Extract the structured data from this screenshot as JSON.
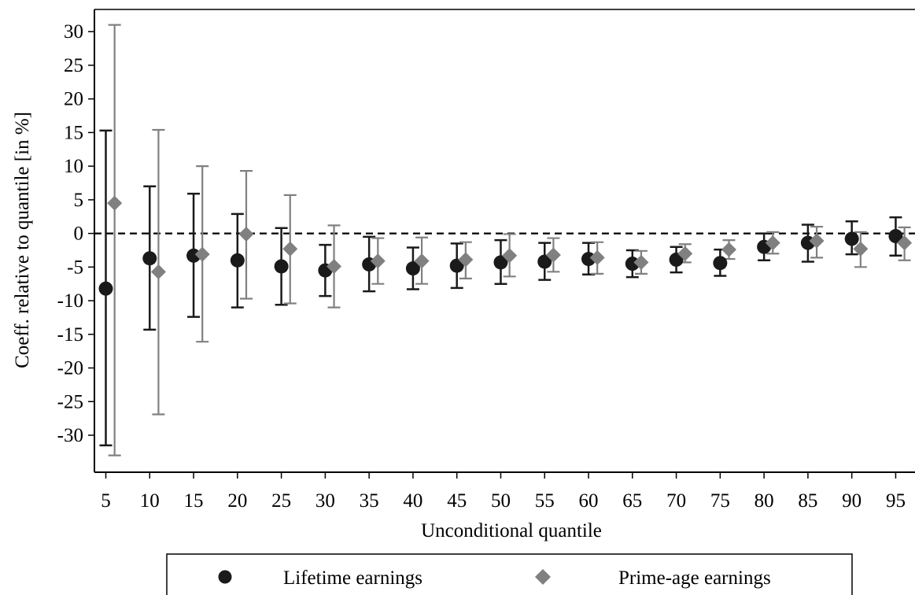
{
  "chart_data": {
    "type": "scatter",
    "xlabel": "Unconditional quantile",
    "ylabel": "Coeff. relative to quantile [in %]",
    "x": [
      5,
      10,
      15,
      20,
      25,
      30,
      35,
      40,
      45,
      50,
      55,
      60,
      65,
      70,
      75,
      80,
      85,
      90,
      95
    ],
    "x_ticks": [
      "5",
      "10",
      "15",
      "20",
      "25",
      "30",
      "35",
      "40",
      "45",
      "50",
      "55",
      "60",
      "65",
      "70",
      "75",
      "80",
      "85",
      "90",
      "95"
    ],
    "y_ticks": [
      "30",
      "25",
      "20",
      "15",
      "10",
      "5",
      "0",
      "-5",
      "-10",
      "-15",
      "-20",
      "-25",
      "-30"
    ],
    "y_tick_values": [
      30,
      25,
      20,
      15,
      10,
      5,
      0,
      -5,
      -10,
      -15,
      -20,
      -25,
      -30
    ],
    "xlim": [
      3.7,
      97.2
    ],
    "ylim": [
      -35.5,
      33.3
    ],
    "reference_line": {
      "y": 0,
      "style": "dashed"
    },
    "series": [
      {
        "name": "Lifetime earnings",
        "marker": "circle",
        "color": "#1a1a1a",
        "x_offset": 0,
        "values": [
          -8.2,
          -3.7,
          -3.3,
          -4.0,
          -4.9,
          -5.5,
          -4.6,
          -5.2,
          -4.8,
          -4.3,
          -4.2,
          -3.8,
          -4.5,
          -3.9,
          -4.4,
          -2.0,
          -1.4,
          -0.8,
          -0.4
        ],
        "ci_low": [
          -31.5,
          -14.3,
          -12.4,
          -11.0,
          -10.6,
          -9.3,
          -8.6,
          -8.3,
          -8.1,
          -7.5,
          -6.9,
          -6.1,
          -6.5,
          -5.8,
          -6.3,
          -4.0,
          -4.2,
          -3.1,
          -3.3
        ],
        "ci_high": [
          15.3,
          7.0,
          5.9,
          2.9,
          0.8,
          -1.7,
          -0.5,
          -2.1,
          -1.5,
          -1.0,
          -1.4,
          -1.4,
          -2.5,
          -2.0,
          -2.4,
          0.0,
          1.3,
          1.8,
          2.4
        ]
      },
      {
        "name": "Prime-age earnings",
        "marker": "diamond",
        "color": "#808080",
        "x_offset": 1,
        "values": [
          4.5,
          -5.7,
          -3.1,
          -0.1,
          -2.3,
          -4.9,
          -4.1,
          -4.1,
          -3.9,
          -3.3,
          -3.2,
          -3.6,
          -4.3,
          -3.0,
          -2.4,
          -1.4,
          -1.1,
          -2.3,
          -1.4
        ],
        "ci_low": [
          -33.0,
          -26.9,
          -16.1,
          -9.7,
          -10.4,
          -11.0,
          -7.5,
          -7.5,
          -6.7,
          -6.4,
          -5.7,
          -6.0,
          -6.0,
          -4.3,
          -3.8,
          -3.0,
          -3.6,
          -5.0,
          -4.0
        ],
        "ci_high": [
          31.0,
          15.4,
          10.0,
          9.3,
          5.7,
          1.2,
          -0.7,
          -0.6,
          -1.3,
          -0.1,
          -0.7,
          -1.3,
          -2.6,
          -1.6,
          -1.0,
          0.2,
          1.0,
          0.2,
          0.9
        ]
      }
    ],
    "legend": {
      "position": "bottom"
    }
  }
}
